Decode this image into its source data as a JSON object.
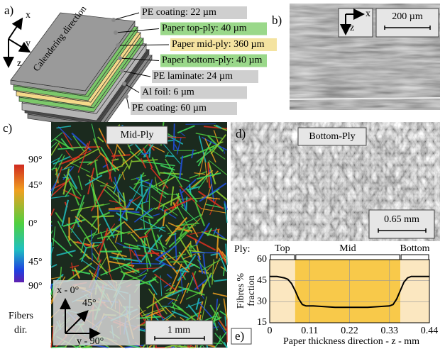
{
  "panel_a": {
    "label": "a)",
    "axes": [
      "x",
      "y",
      "z"
    ],
    "direction": "Calendering direction",
    "layers": [
      "PE coating: 22 µm",
      "Paper top-ply: 40 µm",
      "Paper mid-ply: 360 µm",
      "Paper bottom-ply: 40 µm",
      "PE laminate: 24 µm",
      "Al foil: 6 µm",
      "PE coating: 60 µm"
    ]
  },
  "panel_b": {
    "label": "b)",
    "axes": [
      "x",
      "z"
    ],
    "scale_bar": "200 µm"
  },
  "panel_c": {
    "label": "c)",
    "colorbar": [
      "90°",
      "45°",
      "0°",
      "45°",
      "90°"
    ],
    "colorbar_title": [
      "Fibers",
      "dir."
    ],
    "title": "Mid-Ply",
    "inset": [
      "x - 0°",
      "45°",
      "y - 90°"
    ],
    "scale_bar": "1 mm"
  },
  "panel_d": {
    "label": "d)",
    "title": "Bottom-Ply",
    "scale_bar": "0.65 mm"
  },
  "chart_data": {
    "type": "line",
    "label": "e)",
    "ply_label": "Ply:",
    "ply_names": [
      "Top",
      "Mid",
      "Bottom"
    ],
    "ply_bounds": [
      0,
      0.07,
      0.36,
      0.44
    ],
    "ylabel": [
      "Fibres %",
      "fraction"
    ],
    "xlabel": "Paper thickness direction - z - mm",
    "x": [
      0,
      0.02,
      0.04,
      0.05,
      0.06,
      0.07,
      0.08,
      0.09,
      0.1,
      0.12,
      0.15,
      0.18,
      0.21,
      0.24,
      0.27,
      0.3,
      0.33,
      0.34,
      0.35,
      0.36,
      0.37,
      0.38,
      0.39,
      0.41,
      0.44
    ],
    "series": [
      {
        "color": "#000000",
        "values": [
          48,
          48,
          47,
          46,
          43,
          38,
          32,
          28,
          27,
          27,
          26.5,
          26,
          26,
          26,
          26,
          26.5,
          27,
          28,
          32,
          38,
          44,
          47,
          48,
          48,
          48
        ]
      }
    ],
    "xlim": [
      0,
      0.44
    ],
    "ylim": [
      15,
      60
    ],
    "xticks": [
      0,
      0.11,
      0.22,
      0.33,
      0.44
    ],
    "yticks": [
      15,
      30,
      45,
      60
    ],
    "grid": true
  }
}
